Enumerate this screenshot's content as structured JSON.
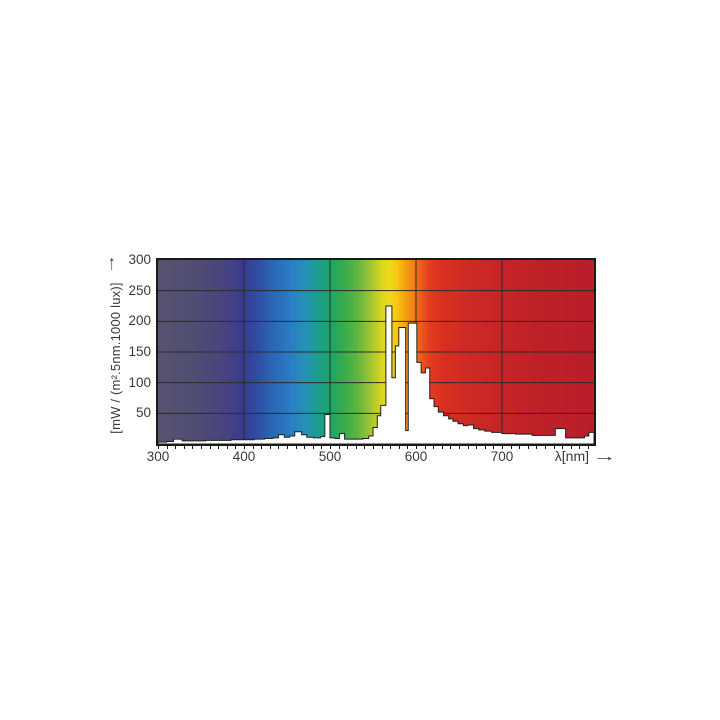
{
  "figure": {
    "y_axis": {
      "title": "[mW / (m².5nm.1000 lux)]",
      "arrow_up": "↑",
      "ticks": [
        300,
        250,
        200,
        150,
        100,
        50
      ]
    },
    "x_axis": {
      "title": "λ[nm]",
      "arrow_right": "→",
      "ticks": [
        300,
        400,
        500,
        600,
        700
      ],
      "minor_tick_step_nm": 10
    }
  },
  "chart_data": {
    "type": "bar",
    "subtype": "step-histogram spectral power distribution",
    "xlabel": "λ[nm]",
    "ylabel": "[mW / (m².5nm.1000 lux)]",
    "xlim": [
      300,
      807
    ],
    "ylim": [
      0,
      300
    ],
    "grid": true,
    "x_gridlines_nm": [
      400,
      500,
      600,
      700
    ],
    "y_gridlines": [
      50,
      100,
      150,
      200,
      250
    ],
    "bins_nm_value": [
      [
        300,
        310,
        3
      ],
      [
        310,
        318,
        4
      ],
      [
        318,
        328,
        8
      ],
      [
        328,
        340,
        5
      ],
      [
        340,
        355,
        5
      ],
      [
        355,
        370,
        6
      ],
      [
        370,
        385,
        6
      ],
      [
        385,
        400,
        7
      ],
      [
        400,
        412,
        7
      ],
      [
        412,
        424,
        8
      ],
      [
        424,
        433,
        9
      ],
      [
        433,
        440,
        10
      ],
      [
        440,
        447,
        15
      ],
      [
        447,
        453,
        11
      ],
      [
        453,
        459,
        13
      ],
      [
        459,
        467,
        20
      ],
      [
        467,
        473,
        15
      ],
      [
        473,
        481,
        11
      ],
      [
        481,
        489,
        10
      ],
      [
        489,
        494,
        12
      ],
      [
        494,
        500,
        48
      ],
      [
        500,
        506,
        10
      ],
      [
        506,
        511,
        9
      ],
      [
        511,
        517,
        17
      ],
      [
        517,
        524,
        8
      ],
      [
        524,
        531,
        8
      ],
      [
        531,
        538,
        8
      ],
      [
        538,
        545,
        9
      ],
      [
        545,
        550,
        13
      ],
      [
        550,
        555,
        27
      ],
      [
        555,
        559,
        46
      ],
      [
        559,
        565,
        63
      ],
      [
        565,
        572,
        225
      ],
      [
        572,
        576,
        108
      ],
      [
        576,
        580,
        160
      ],
      [
        580,
        588,
        190
      ],
      [
        588,
        591,
        22
      ],
      [
        591,
        601,
        197
      ],
      [
        601,
        606,
        133
      ],
      [
        606,
        611,
        116
      ],
      [
        611,
        616,
        124
      ],
      [
        616,
        621,
        74
      ],
      [
        621,
        626,
        61
      ],
      [
        626,
        632,
        52
      ],
      [
        632,
        638,
        46
      ],
      [
        638,
        643,
        41
      ],
      [
        643,
        649,
        37
      ],
      [
        649,
        655,
        33
      ],
      [
        655,
        660,
        30
      ],
      [
        660,
        667,
        31
      ],
      [
        667,
        673,
        25
      ],
      [
        673,
        680,
        23
      ],
      [
        680,
        688,
        21
      ],
      [
        688,
        700,
        19
      ],
      [
        700,
        716,
        17
      ],
      [
        716,
        735,
        16
      ],
      [
        735,
        762,
        14
      ],
      [
        762,
        774,
        25
      ],
      [
        774,
        796,
        10
      ],
      [
        796,
        801,
        13
      ],
      [
        801,
        807,
        19
      ]
    ],
    "spectrum_background_stops": [
      {
        "wl": 300,
        "color": "#57536F"
      },
      {
        "wl": 340,
        "color": "#524D74"
      },
      {
        "wl": 375,
        "color": "#49447E"
      },
      {
        "wl": 400,
        "color": "#383B8F"
      },
      {
        "wl": 415,
        "color": "#2F4DA3"
      },
      {
        "wl": 435,
        "color": "#2A68B6"
      },
      {
        "wl": 455,
        "color": "#2A7EC3"
      },
      {
        "wl": 472,
        "color": "#2492B4"
      },
      {
        "wl": 487,
        "color": "#1C9E8C"
      },
      {
        "wl": 500,
        "color": "#1EA467"
      },
      {
        "wl": 515,
        "color": "#35AB4D"
      },
      {
        "wl": 532,
        "color": "#5FB542"
      },
      {
        "wl": 548,
        "color": "#A4C631"
      },
      {
        "wl": 561,
        "color": "#DCD71F"
      },
      {
        "wl": 570,
        "color": "#EEDA19"
      },
      {
        "wl": 578,
        "color": "#F6C513"
      },
      {
        "wl": 588,
        "color": "#F5A00F"
      },
      {
        "wl": 597,
        "color": "#F28012"
      },
      {
        "wl": 606,
        "color": "#EC5A1A"
      },
      {
        "wl": 617,
        "color": "#E23B20"
      },
      {
        "wl": 632,
        "color": "#D92F22"
      },
      {
        "wl": 660,
        "color": "#CF2924"
      },
      {
        "wl": 700,
        "color": "#C62427"
      },
      {
        "wl": 755,
        "color": "#BD2028"
      },
      {
        "wl": 807,
        "color": "#B91E2A"
      }
    ],
    "histogram_fill": "#ffffff",
    "histogram_stroke": "#1f1f1f",
    "gridline_color": "#2b2b2b",
    "axis_color": "#1a1a1a",
    "label_color": "#3a3a3a"
  }
}
